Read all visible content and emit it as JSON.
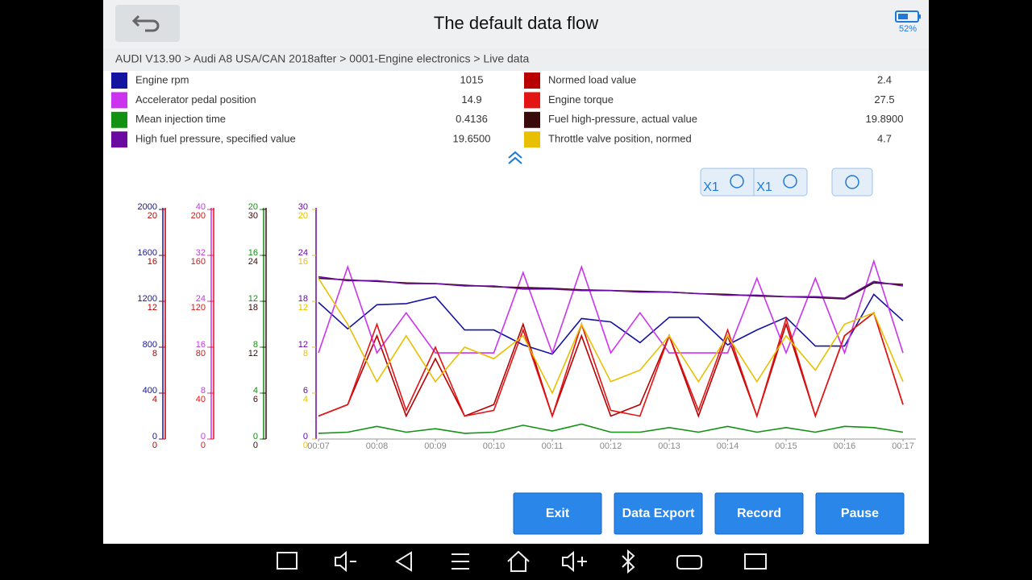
{
  "header": {
    "title": "The default data flow",
    "battery": "52%"
  },
  "breadcrumb": "AUDI V13.90 > Audi A8 USA/CAN 2018after  > 0001-Engine electronics > Live data",
  "zoom": {
    "x": "X1",
    "y": "X1"
  },
  "buttons": [
    "Exit",
    "Data Export",
    "Record",
    "Pause"
  ],
  "chart_data": {
    "type": "line",
    "x": [
      7,
      7.5,
      8,
      8.5,
      9,
      9.5,
      10,
      10.5,
      11,
      11.5,
      12,
      12.5,
      13,
      13.5,
      14,
      14.5,
      15,
      15.5,
      16,
      16.5,
      17
    ],
    "xlim": [
      7,
      17.22
    ],
    "xticks": [
      {
        "value": 7,
        "label": "00:07"
      },
      {
        "value": 8,
        "label": "00:08"
      },
      {
        "value": 9,
        "label": "00:09"
      },
      {
        "value": 10,
        "label": "00:10"
      },
      {
        "value": 11,
        "label": "00:11"
      },
      {
        "value": 12,
        "label": "00:12"
      },
      {
        "value": 13,
        "label": "00:13"
      },
      {
        "value": 14,
        "label": "00:14"
      },
      {
        "value": 15,
        "label": "00:15"
      },
      {
        "value": 16,
        "label": "00:16"
      },
      {
        "value": 17,
        "label": "00:17"
      }
    ],
    "y_axes": [
      {
        "series": [
          {
            "name": "Engine rpm",
            "color": "#1414a0",
            "reading": "1015",
            "ylim": [
              0,
              2000
            ],
            "yticks": [
              0,
              400,
              800,
              1200,
              1600,
              2000
            ],
            "values": [
              1190,
              960,
              1170,
              1180,
              1240,
              950,
              950,
              820,
              740,
              1050,
              1020,
              840,
              1060,
              1060,
              820,
              950,
              1060,
              810,
              810,
              1260,
              1030
            ]
          },
          {
            "name": "Normed load value",
            "color": "#b80000",
            "reading": "2.4",
            "ylim": [
              0,
              20
            ],
            "yticks": [
              0,
              4,
              8,
              12,
              16,
              20
            ],
            "values": [
              2,
              3,
              9,
              2,
              7,
              2,
              3,
              10,
              2,
              9,
              2,
              3,
              9,
              2,
              9,
              2,
              10,
              2,
              9,
              11,
              3
            ]
          }
        ]
      },
      {
        "series": [
          {
            "name": "Accelerator pedal position",
            "color": "#cc33ee",
            "reading": "14.9",
            "ylim": [
              0,
              40
            ],
            "yticks": [
              0,
              8,
              16,
              24,
              32,
              40
            ],
            "values": [
              15,
              30,
              15,
              22,
              15,
              15,
              15,
              29,
              15,
              30,
              15,
              22,
              15,
              15,
              15,
              28,
              15,
              28,
              15,
              31,
              15
            ]
          },
          {
            "name": "Engine torque",
            "color": "#e41414",
            "reading": "27.5",
            "ylim": [
              0,
              200
            ],
            "yticks": [
              0,
              40,
              80,
              120,
              160,
              200
            ],
            "values": [
              20,
              30,
              100,
              25,
              80,
              20,
              25,
              95,
              20,
              100,
              25,
              20,
              90,
              25,
              95,
              20,
              105,
              20,
              90,
              110,
              30
            ]
          }
        ]
      },
      {
        "series": [
          {
            "name": "Mean injection time",
            "color": "#129212",
            "reading": "0.4136",
            "ylim": [
              0,
              20
            ],
            "yticks": [
              0,
              4,
              8,
              12,
              16,
              20
            ],
            "values": [
              0.5,
              0.6,
              1.1,
              0.6,
              0.9,
              0.5,
              0.6,
              1.2,
              0.7,
              1.3,
              0.6,
              0.6,
              1.0,
              0.6,
              1.1,
              0.6,
              1.0,
              0.6,
              1.1,
              1.0,
              0.6
            ]
          },
          {
            "name": "Fuel high-pressure, actual value",
            "color": "#3a0a0a",
            "reading": "19.8900",
            "ylim": [
              0,
              30
            ],
            "yticks": [
              0,
              6,
              12,
              18,
              24,
              30
            ],
            "values": [
              21.0,
              20.8,
              20.6,
              20.4,
              20.3,
              20.1,
              19.9,
              19.8,
              19.7,
              19.5,
              19.4,
              19.3,
              19.2,
              19.0,
              18.9,
              18.7,
              18.6,
              18.5,
              18.3,
              20.4,
              20.2
            ]
          }
        ]
      },
      {
        "series": [
          {
            "name": "High fuel pressure, specified value",
            "color": "#6a0aa0",
            "reading": "19.6500",
            "ylim": [
              0,
              30
            ],
            "yticks": [
              0,
              6,
              12,
              18,
              24,
              30
            ],
            "values": [
              21.2,
              20.7,
              20.7,
              20.3,
              20.3,
              20.0,
              20.0,
              19.6,
              19.6,
              19.4,
              19.4,
              19.2,
              19.2,
              19.0,
              18.8,
              18.8,
              18.6,
              18.6,
              18.4,
              20.6,
              20.0
            ]
          },
          {
            "name": "Throttle valve position, normed",
            "color": "#e8c000",
            "reading": "4.7",
            "ylim": [
              0,
              20
            ],
            "yticks": [
              0,
              4,
              8,
              12,
              16,
              20
            ],
            "values": [
              14,
              10,
              5,
              9,
              5,
              8,
              7,
              9,
              4,
              10,
              5,
              6,
              9,
              5,
              9,
              5,
              9,
              6,
              10,
              11,
              5
            ]
          }
        ]
      }
    ]
  }
}
